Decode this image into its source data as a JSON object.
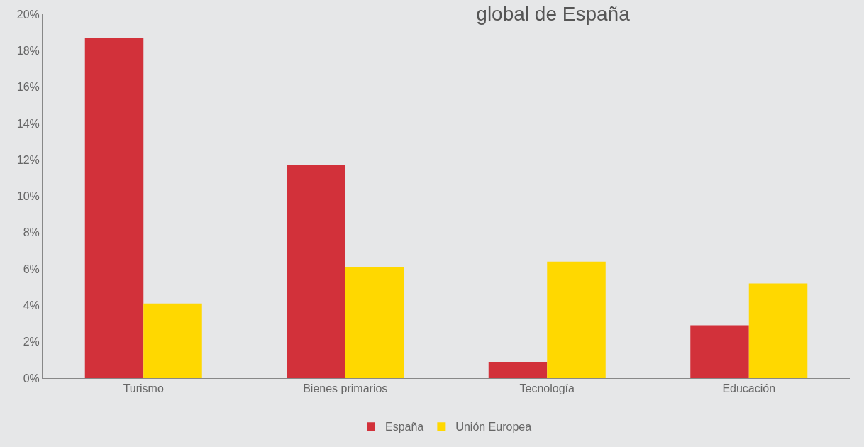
{
  "chart_data": {
    "type": "bar",
    "title": "global de España",
    "categories": [
      "Turismo",
      "Bienes primarios",
      "Tecnología",
      "Educación"
    ],
    "series": [
      {
        "name": "España",
        "color": "#d2313a",
        "values": [
          18.7,
          11.7,
          0.9,
          2.9
        ]
      },
      {
        "name": "Unión Europea",
        "color": "#ffd800",
        "values": [
          4.1,
          6.1,
          6.4,
          5.2
        ]
      }
    ],
    "ylim": [
      0,
      20
    ],
    "yticks": [
      {
        "value": 0,
        "label": "0%"
      },
      {
        "value": 2,
        "label": "2%"
      },
      {
        "value": 4,
        "label": "4%"
      },
      {
        "value": 6,
        "label": "6%"
      },
      {
        "value": 8,
        "label": "8%"
      },
      {
        "value": 10,
        "label": "10%"
      },
      {
        "value": 12,
        "label": "12%"
      },
      {
        "value": 14,
        "label": "14%"
      },
      {
        "value": 16,
        "label": "16%"
      },
      {
        "value": 18,
        "label": "18%"
      },
      {
        "value": 20,
        "label": "20%"
      }
    ],
    "grid": false,
    "legend": "bottom"
  }
}
